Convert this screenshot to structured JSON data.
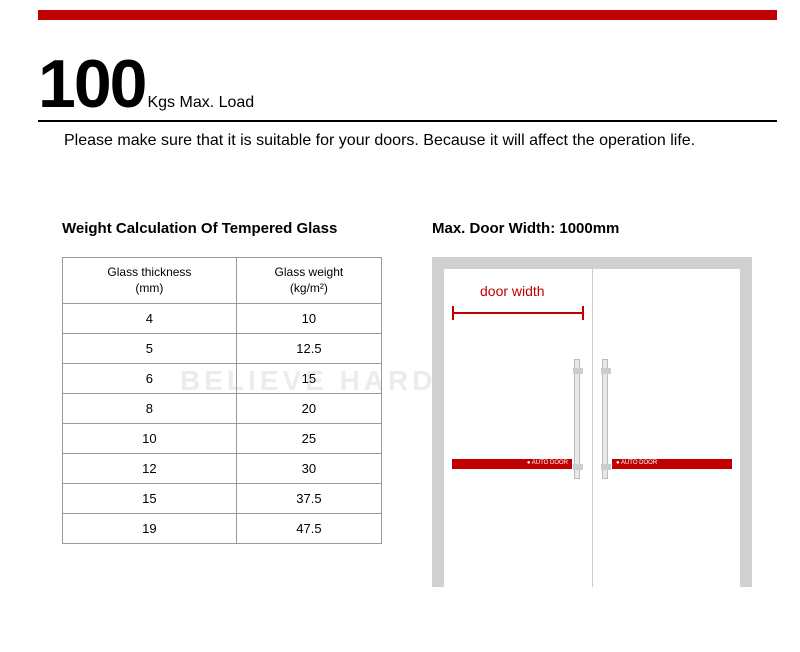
{
  "header": {
    "max_load_value": "100",
    "max_load_label": "Kgs Max. Load",
    "sub_text": "Please make sure that it is suitable for your doors. Because it will affect the operation life."
  },
  "table": {
    "title": "Weight Calculation Of Tempered Glass",
    "col1_header": "Glass thickness\n(mm)",
    "col2_header": "Glass weight\n(kg/m²)",
    "rows": [
      {
        "thickness": "4",
        "weight": "10"
      },
      {
        "thickness": "5",
        "weight": "12.5"
      },
      {
        "thickness": "6",
        "weight": "15"
      },
      {
        "thickness": "8",
        "weight": "20"
      },
      {
        "thickness": "10",
        "weight": "25"
      },
      {
        "thickness": "12",
        "weight": "30"
      },
      {
        "thickness": "15",
        "weight": "37.5"
      },
      {
        "thickness": "19",
        "weight": "47.5"
      }
    ]
  },
  "door": {
    "title": "Max. Door Width: 1000mm",
    "width_label": "door width"
  },
  "watermark": "BELIEVE HARDWARE",
  "colors": {
    "accent_red": "#c00000",
    "frame_gray": "#d0d0d0"
  }
}
